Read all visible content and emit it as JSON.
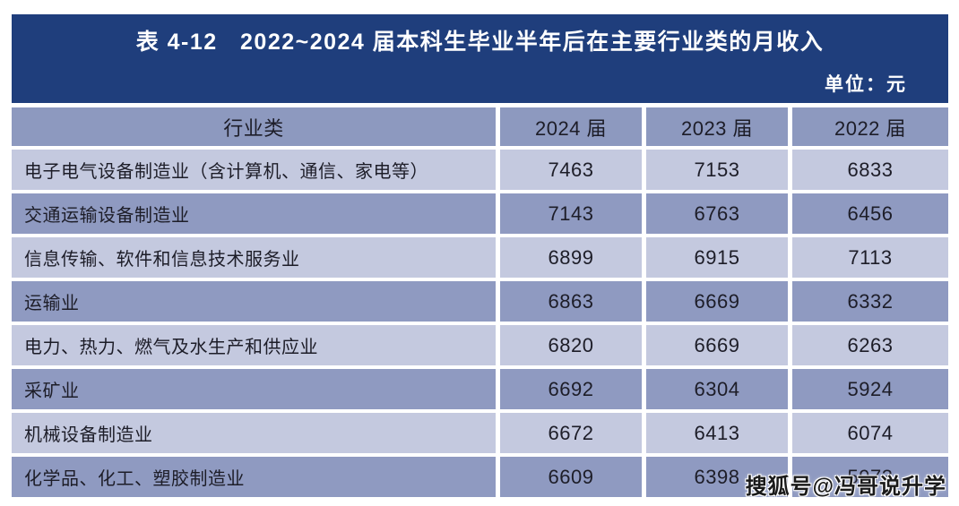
{
  "chart_data": {
    "type": "table",
    "title": "表 4-12   2022~2024 届本科生毕业半年后在主要行业类的月收入",
    "unit": "单位：元",
    "columns": [
      "行业类",
      "2024 届",
      "2023 届",
      "2022 届"
    ],
    "rows": [
      [
        "电子电气设备制造业（含计算机、通信、家电等）",
        "7463",
        "7153",
        "6833"
      ],
      [
        "交通运输设备制造业",
        "7143",
        "6763",
        "6456"
      ],
      [
        "信息传输、软件和信息技术服务业",
        "6899",
        "6915",
        "7113"
      ],
      [
        "运输业",
        "6863",
        "6669",
        "6332"
      ],
      [
        "电力、热力、燃气及水生产和供应业",
        "6820",
        "6669",
        "6263"
      ],
      [
        "采矿业",
        "6692",
        "6304",
        "5924"
      ],
      [
        "机械设备制造业",
        "6672",
        "6413",
        "6074"
      ],
      [
        "化学品、化工、塑胶制造业",
        "6609",
        "6398",
        "5973"
      ]
    ],
    "layout": {
      "legend": "none",
      "grid": "white 4px gaps between cells",
      "row_striping": "light/dark alternating starting light"
    }
  },
  "colors": {
    "title_bar": "#1F3E7C",
    "header_row": "#8D99BF",
    "row_dark": "#8F9AC1",
    "row_light": "#C4C9DF",
    "cell_text": "#1D1D28",
    "title_text": "#FFFFFF",
    "page_background": "#FFFFFF"
  },
  "watermark": {
    "text": "搜狐号@冯哥说升学"
  }
}
